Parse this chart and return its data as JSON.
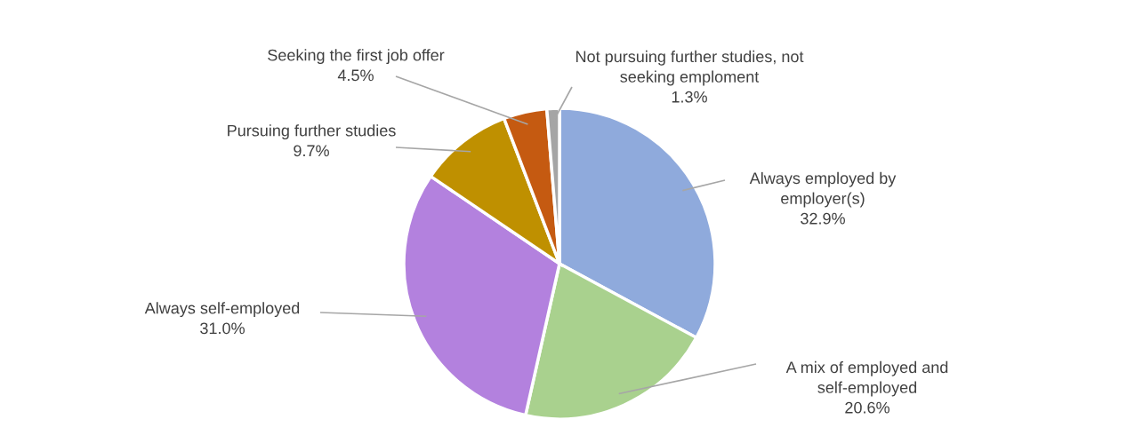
{
  "chart_data": {
    "type": "pie",
    "categories": [
      "Always employed by employer(s)",
      "A mix of employed and self-employed",
      "Always self-employed",
      "Pursuing further studies",
      "Seeking the first job offer",
      "Not pursuing further studies, not seeking emploment"
    ],
    "values": [
      32.9,
      20.6,
      31.0,
      9.7,
      4.5,
      1.3
    ],
    "colors": [
      "#8faadc",
      "#a9d18e",
      "#b381de",
      "#bf9000",
      "#c55a11",
      "#a5a5a5"
    ],
    "value_labels": [
      "32.9%",
      "20.6%",
      "31.0%",
      "9.7%",
      "4.5%",
      "1.3%"
    ]
  }
}
